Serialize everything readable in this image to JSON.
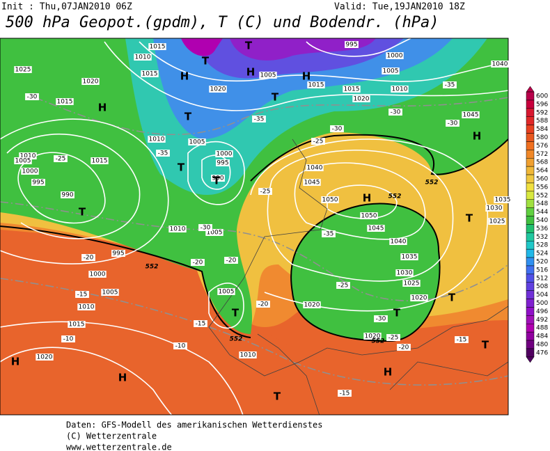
{
  "header": {
    "init": "Init : Thu,07JAN2010 06Z",
    "valid": "Valid: Tue,19JAN2010 18Z",
    "title": "500 hPa Geopot.(gpdm), T (C) und Bodendr. (hPa)"
  },
  "colorbar": {
    "labels": [
      600,
      596,
      592,
      588,
      584,
      580,
      576,
      572,
      568,
      564,
      560,
      556,
      552,
      548,
      544,
      540,
      536,
      532,
      528,
      524,
      520,
      516,
      512,
      508,
      504,
      500,
      496,
      492,
      488,
      484,
      480,
      476
    ],
    "colors": [
      "#b8004a",
      "#c8003c",
      "#d81830",
      "#e02828",
      "#e84020",
      "#e85820",
      "#f07020",
      "#f08828",
      "#f0a030",
      "#f0b838",
      "#f0c840",
      "#f0e040",
      "#d8e840",
      "#a0e040",
      "#60d040",
      "#40c040",
      "#20c070",
      "#20c8a0",
      "#20c8c8",
      "#20b8e8",
      "#3090f0",
      "#4070f0",
      "#5050e8",
      "#6040e0",
      "#7030d8",
      "#8020d0",
      "#9010c8",
      "#a010b8",
      "#b000b0",
      "#9000a0",
      "#700080",
      "#500060"
    ]
  },
  "map_labels": {
    "pressure": [
      "1025",
      "1020",
      "1015",
      "1010",
      "1005",
      "1000",
      "995",
      "990",
      "1015",
      "1010",
      "1005",
      "1000",
      "995",
      "990",
      "1010",
      "1005",
      "995",
      "1000",
      "1005",
      "1010",
      "1015",
      "1020",
      "1005",
      "1010",
      "1015",
      "1010",
      "1015",
      "1020",
      "1005",
      "1015",
      "1015",
      "1010",
      "1020",
      "995",
      "1000",
      "1005",
      "1040",
      "1045",
      "1050",
      "1050",
      "1045",
      "1040",
      "1035",
      "1030",
      "1025",
      "1020",
      "1020",
      "1020",
      "1045",
      "1035",
      "1030",
      "1025",
      "1040"
    ],
    "temperature": [
      "-30",
      "-25",
      "-35",
      "-30",
      "-25",
      "-20",
      "-20",
      "-20",
      "-15",
      "-10",
      "-10",
      "-15",
      "-20",
      "-35",
      "-30",
      "-25",
      "-30",
      "-30",
      "-35",
      "-35",
      "-25",
      "-30",
      "-25",
      "-20",
      "-15",
      "-15"
    ],
    "geopotential": [
      "552",
      "552",
      "552",
      "552",
      "552"
    ],
    "centers": [
      "H",
      "T",
      "T",
      "T",
      "T",
      "H",
      "H",
      "T",
      "T",
      "H",
      "T",
      "H",
      "H",
      "T",
      "T",
      "T",
      "T",
      "H",
      "H",
      "T",
      "H",
      "T"
    ]
  },
  "footer": [
    "Daten: GFS-Modell des amerikanischen Wetterdienstes",
    "(C) Wetterzentrale",
    "www.wetterzentrale.de"
  ]
}
